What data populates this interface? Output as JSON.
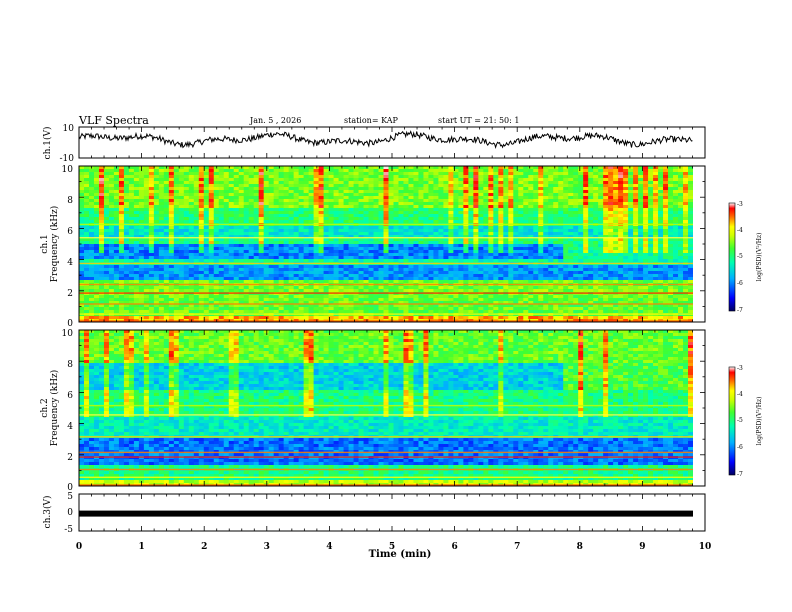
{
  "header": {
    "title": "VLF Spectra",
    "date": "Jan. 5 , 2026",
    "station": "station= KAP",
    "start": "start  UT =   21: 50: 1"
  },
  "chart_data": [
    {
      "type": "line",
      "panel": "ch1-waveform",
      "ylabel": "ch.1(V)",
      "ylim": [
        -10,
        10
      ],
      "yticks": [
        "10",
        "-10"
      ],
      "xlim": [
        0,
        10
      ],
      "xlabel_unit": "min",
      "series": [
        {
          "name": "ch.1",
          "description": "noisy waveform roughly between -3 and 6 V"
        }
      ]
    },
    {
      "type": "heatmap",
      "panel": "ch1-spectrogram",
      "ylabel_line1": "ch.1",
      "ylabel_line2": "Frequency (kHz)",
      "ylim": [
        0,
        10
      ],
      "yticks": [
        "0",
        "2",
        "4",
        "6",
        "8",
        "10"
      ],
      "xlim": [
        0,
        9.8
      ],
      "colorbar": {
        "label": "log(PSD)(V²/Hz)",
        "range": [
          -7,
          -3
        ],
        "ticks": [
          "-3",
          "-4",
          "-5",
          "-6",
          "-7"
        ]
      }
    },
    {
      "type": "heatmap",
      "panel": "ch2-spectrogram",
      "ylabel_line1": "ch.2",
      "ylabel_line2": "Frequency (kHz)",
      "ylim": [
        0,
        10
      ],
      "yticks": [
        "0",
        "2",
        "4",
        "6",
        "8",
        "10"
      ],
      "xlim": [
        0,
        9.8
      ],
      "colorbar": {
        "label": "log(PSD)(V²/Hz)",
        "range": [
          -7,
          -3
        ],
        "ticks": [
          "-3",
          "-4",
          "-5",
          "-6",
          "-7"
        ]
      }
    },
    {
      "type": "line",
      "panel": "ch3-waveform",
      "ylabel": "ch.3(V)",
      "ylim": [
        -5,
        5
      ],
      "yticks": [
        "5",
        "0",
        "-5"
      ],
      "xlim": [
        0,
        10
      ],
      "series": [
        {
          "name": "ch.3",
          "values_constant": -0.3
        }
      ]
    }
  ],
  "x_axis": {
    "label": "Time (min)",
    "ticks": [
      "0",
      "1",
      "2",
      "3",
      "4",
      "5",
      "6",
      "7",
      "8",
      "9",
      "10"
    ]
  },
  "colors": {
    "waveform": "#000000",
    "colormap": [
      "#000080",
      "#0000ff",
      "#00a0ff",
      "#00ffc0",
      "#40ff40",
      "#c0ff00",
      "#ffff00",
      "#ff8000",
      "#ff0000",
      "#ffffff"
    ]
  }
}
